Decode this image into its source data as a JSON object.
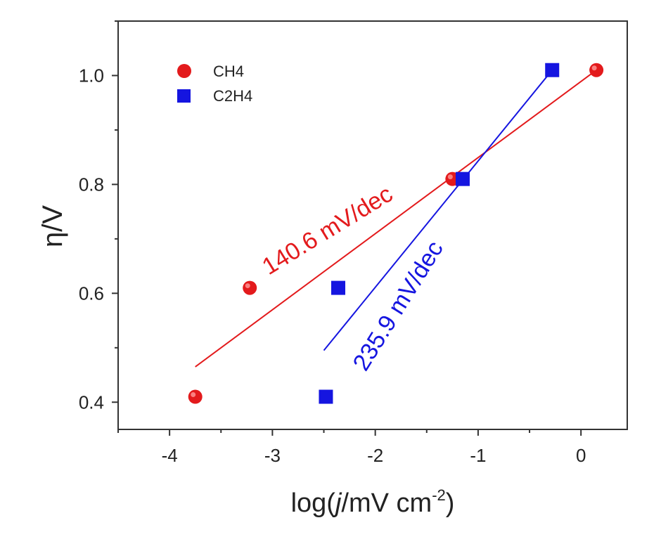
{
  "chart_data": {
    "type": "scatter",
    "xlabel_pre": "log(",
    "xlabel_italic": "j",
    "xlabel_post": "/mV cm",
    "xlabel_sup": "-2",
    "xlabel_close": ")",
    "ylabel": "η/V",
    "xlim": [
      -4.5,
      0.45
    ],
    "ylim": [
      0.35,
      1.1
    ],
    "xticks": [
      -4,
      -3,
      -2,
      -1,
      0
    ],
    "xtick_labels": [
      "-4",
      "-3",
      "-2",
      "-1",
      "0"
    ],
    "yticks": [
      0.4,
      0.6,
      0.8,
      1.0
    ],
    "ytick_labels": [
      "0.4",
      "0.6",
      "0.8",
      "1.0"
    ],
    "legend_position": "top-left",
    "series": [
      {
        "name": "CH4",
        "marker": "circle",
        "color": "#e31a1c",
        "points": [
          {
            "x": -3.75,
            "y": 0.41
          },
          {
            "x": -3.22,
            "y": 0.61
          },
          {
            "x": -1.25,
            "y": 0.81
          },
          {
            "x": 0.15,
            "y": 1.01
          }
        ],
        "fit": {
          "x": [
            -3.75,
            0.15
          ],
          "y": [
            0.465,
            1.01
          ]
        },
        "slope_label": "140.6 mV/dec"
      },
      {
        "name": "C2H4",
        "marker": "square",
        "color": "#1515e0",
        "points": [
          {
            "x": -2.48,
            "y": 0.41
          },
          {
            "x": -2.36,
            "y": 0.61
          },
          {
            "x": -1.15,
            "y": 0.81
          },
          {
            "x": -0.28,
            "y": 1.01
          }
        ],
        "fit": {
          "x": [
            -2.5,
            -0.28
          ],
          "y": [
            0.495,
            1.01
          ]
        },
        "slope_label": "235.9 mV/dec"
      }
    ]
  }
}
